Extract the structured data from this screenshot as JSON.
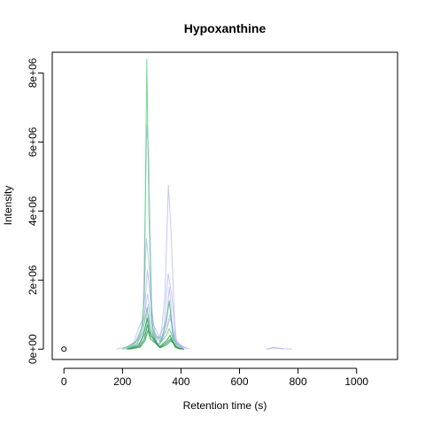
{
  "chart_data": {
    "type": "line",
    "title": "Hypoxanthine",
    "xlabel": "Retention time (s)",
    "ylabel": "Intensity",
    "xlim": [
      -40,
      1140
    ],
    "ylim": [
      -300000,
      8600000
    ],
    "x_ticks": [
      0,
      200,
      400,
      600,
      800,
      1000
    ],
    "x_tick_labels": [
      "0",
      "200",
      "400",
      "600",
      "800",
      "1000"
    ],
    "y_ticks": [
      0,
      2000000,
      4000000,
      6000000,
      8000000
    ],
    "y_tick_labels": [
      "0e+00",
      "2e+06",
      "4e+06",
      "6e+06",
      "8e+06"
    ],
    "grid": false,
    "legend": "none",
    "colors": {
      "blue_series": "#9999ee",
      "green_series": "#44cc66",
      "dark_green_series": "#229944",
      "marker": "#000000"
    },
    "marker_point": {
      "x": 0,
      "y": 0
    },
    "series": [
      {
        "color": "blue_series",
        "points": [
          [
            180,
            0
          ],
          [
            235,
            100000
          ],
          [
            255,
            600000
          ],
          [
            270,
            900000
          ],
          [
            282,
            3200000
          ],
          [
            290,
            2500000
          ],
          [
            305,
            400000
          ],
          [
            330,
            300000
          ],
          [
            345,
            1500000
          ],
          [
            357,
            4750000
          ],
          [
            366,
            3400000
          ],
          [
            380,
            300000
          ],
          [
            410,
            0
          ]
        ]
      },
      {
        "color": "blue_series",
        "points": [
          [
            200,
            0
          ],
          [
            250,
            200000
          ],
          [
            270,
            700000
          ],
          [
            283,
            6500000
          ],
          [
            290,
            5600000
          ],
          [
            300,
            800000
          ],
          [
            335,
            200000
          ],
          [
            350,
            800000
          ],
          [
            360,
            1800000
          ],
          [
            375,
            300000
          ],
          [
            400,
            0
          ]
        ]
      },
      {
        "color": "blue_series",
        "points": [
          [
            210,
            0
          ],
          [
            255,
            300000
          ],
          [
            275,
            900000
          ],
          [
            285,
            2300000
          ],
          [
            295,
            1500000
          ],
          [
            315,
            200000
          ],
          [
            345,
            700000
          ],
          [
            360,
            1400000
          ],
          [
            372,
            300000
          ],
          [
            405,
            0
          ]
        ]
      },
      {
        "color": "blue_series",
        "points": [
          [
            215,
            0
          ],
          [
            258,
            150000
          ],
          [
            278,
            600000
          ],
          [
            288,
            1300000
          ],
          [
            296,
            800000
          ],
          [
            320,
            150000
          ],
          [
            348,
            500000
          ],
          [
            362,
            1000000
          ],
          [
            380,
            200000
          ],
          [
            410,
            0
          ]
        ]
      },
      {
        "color": "blue_series",
        "points": [
          [
            220,
            0
          ],
          [
            262,
            200000
          ],
          [
            280,
            500000
          ],
          [
            289,
            1000000
          ],
          [
            298,
            500000
          ],
          [
            325,
            100000
          ],
          [
            352,
            600000
          ],
          [
            363,
            900000
          ],
          [
            384,
            150000
          ],
          [
            430,
            0
          ]
        ]
      },
      {
        "color": "blue_series",
        "points": [
          [
            225,
            0
          ],
          [
            262,
            400000
          ],
          [
            272,
            800000
          ],
          [
            286,
            1600000
          ],
          [
            294,
            1200000
          ],
          [
            310,
            300000
          ],
          [
            340,
            400000
          ],
          [
            356,
            2200000
          ],
          [
            368,
            1600000
          ],
          [
            385,
            200000
          ],
          [
            420,
            0
          ]
        ]
      },
      {
        "color": "blue_series",
        "points": [
          [
            700,
            0
          ],
          [
            715,
            60000
          ],
          [
            730,
            40000
          ],
          [
            750,
            0
          ]
        ]
      },
      {
        "color": "blue_series",
        "points": [
          [
            690,
            0
          ],
          [
            712,
            30000
          ],
          [
            735,
            20000
          ],
          [
            780,
            0
          ]
        ]
      },
      {
        "color": "green_series",
        "points": [
          [
            200,
            0
          ],
          [
            245,
            200000
          ],
          [
            265,
            600000
          ],
          [
            275,
            1500000
          ],
          [
            283,
            8400000
          ],
          [
            290,
            4000000
          ],
          [
            302,
            600000
          ],
          [
            330,
            200000
          ],
          [
            350,
            800000
          ],
          [
            360,
            1400000
          ],
          [
            375,
            200000
          ],
          [
            400,
            0
          ]
        ]
      },
      {
        "color": "green_series",
        "points": [
          [
            210,
            0
          ],
          [
            250,
            150000
          ],
          [
            270,
            500000
          ],
          [
            284,
            1200000
          ],
          [
            292,
            700000
          ],
          [
            320,
            100000
          ],
          [
            350,
            400000
          ],
          [
            360,
            600000
          ],
          [
            380,
            100000
          ],
          [
            400,
            0
          ]
        ]
      },
      {
        "color": "dark_green_series",
        "points": [
          [
            215,
            0
          ],
          [
            255,
            100000
          ],
          [
            272,
            400000
          ],
          [
            285,
            900000
          ],
          [
            293,
            500000
          ],
          [
            325,
            60000
          ],
          [
            352,
            250000
          ],
          [
            362,
            400000
          ],
          [
            380,
            60000
          ],
          [
            400,
            0
          ]
        ]
      },
      {
        "color": "dark_green_series",
        "points": [
          [
            220,
            0
          ],
          [
            258,
            80000
          ],
          [
            275,
            300000
          ],
          [
            286,
            700000
          ],
          [
            294,
            400000
          ],
          [
            328,
            50000
          ],
          [
            354,
            200000
          ],
          [
            364,
            300000
          ],
          [
            385,
            40000
          ],
          [
            410,
            0
          ]
        ]
      },
      {
        "color": "dark_green_series",
        "points": [
          [
            225,
            0
          ],
          [
            260,
            60000
          ],
          [
            277,
            250000
          ],
          [
            287,
            550000
          ],
          [
            295,
            300000
          ],
          [
            330,
            40000
          ],
          [
            355,
            150000
          ],
          [
            365,
            250000
          ],
          [
            388,
            30000
          ],
          [
            410,
            0
          ]
        ]
      }
    ]
  }
}
